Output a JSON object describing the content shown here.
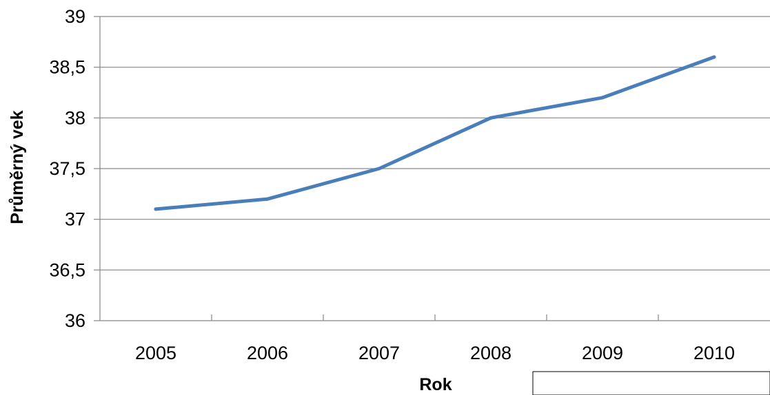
{
  "chart_data": {
    "type": "line",
    "title": "",
    "xlabel": "Rok",
    "ylabel": "Průměrný vek",
    "categories": [
      "2005",
      "2006",
      "2007",
      "2008",
      "2009",
      "2010"
    ],
    "series": [
      {
        "values": [
          37.1,
          37.2,
          37.5,
          38.0,
          38.2,
          38.6
        ],
        "color": "#4a7ebb"
      }
    ],
    "ylim": [
      36,
      39
    ],
    "yticks": [
      "36",
      "36,5",
      "37",
      "37,5",
      "38",
      "38,5",
      "39"
    ],
    "grid": true,
    "legend": "none"
  }
}
